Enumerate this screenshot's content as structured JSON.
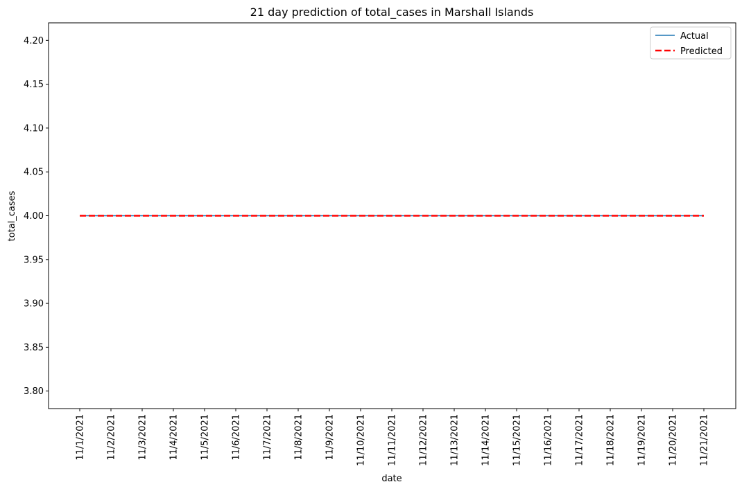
{
  "chart_data": {
    "type": "line",
    "title": "21 day prediction of total_cases in Marshall Islands",
    "xlabel": "date",
    "ylabel": "total_cases",
    "x": [
      "11/1/2021",
      "11/2/2021",
      "11/3/2021",
      "11/4/2021",
      "11/5/2021",
      "11/6/2021",
      "11/7/2021",
      "11/8/2021",
      "11/9/2021",
      "11/10/2021",
      "11/11/2021",
      "11/12/2021",
      "11/13/2021",
      "11/14/2021",
      "11/15/2021",
      "11/16/2021",
      "11/17/2021",
      "11/18/2021",
      "11/19/2021",
      "11/20/2021",
      "11/21/2021"
    ],
    "ylim": [
      3.78,
      4.22
    ],
    "yticks": [
      "3.80",
      "3.85",
      "3.90",
      "3.95",
      "4.00",
      "4.05",
      "4.10",
      "4.15",
      "4.20"
    ],
    "series": [
      {
        "name": "Actual",
        "color": "#1f77b4",
        "style": "solid",
        "values": [
          4,
          4,
          4,
          4,
          4,
          4,
          4,
          4,
          4,
          4,
          4,
          4,
          4,
          4,
          4,
          4,
          4,
          4,
          4,
          4,
          4
        ]
      },
      {
        "name": "Predicted",
        "color": "#ff0000",
        "style": "dashed",
        "values": [
          4,
          4,
          4,
          4,
          4,
          4,
          4,
          4,
          4,
          4,
          4,
          4,
          4,
          4,
          4,
          4,
          4,
          4,
          4,
          4,
          4
        ]
      }
    ],
    "grid": false,
    "legend": "top-right"
  }
}
